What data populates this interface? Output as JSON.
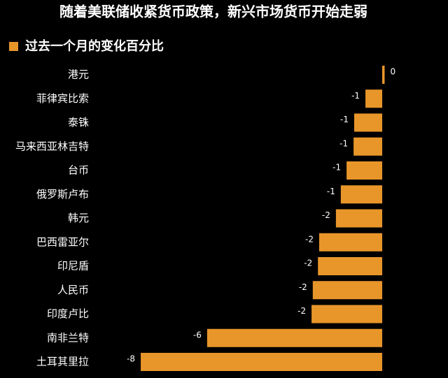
{
  "chart_data": {
    "type": "barh",
    "title": "随着美联储收紧货币政策，新兴市场货币开始走弱",
    "subtitle": "过去一个月的变化百分比",
    "categories": [
      "港元",
      "菲律宾比索",
      "泰铢",
      "马来西亚林吉特",
      "台币",
      "俄罗斯卢布",
      "韩元",
      "巴西雷亚尔",
      "印尼盾",
      "人民币",
      "印度卢比",
      "南非兰特",
      "土耳其里拉"
    ],
    "values": [
      0.08,
      -0.55,
      -0.92,
      -0.94,
      -1.17,
      -1.36,
      -1.52,
      -2.07,
      -2.11,
      -2.28,
      -2.32,
      -5.75,
      -7.93
    ],
    "value_labels": [
      "0",
      "-1",
      "-1",
      "-1",
      "-1",
      "-1",
      "-2",
      "-2",
      "-2",
      "-2",
      "-2",
      "-6",
      "-8"
    ],
    "color": "#e8962a",
    "xlim": [
      -9,
      0.5
    ]
  }
}
